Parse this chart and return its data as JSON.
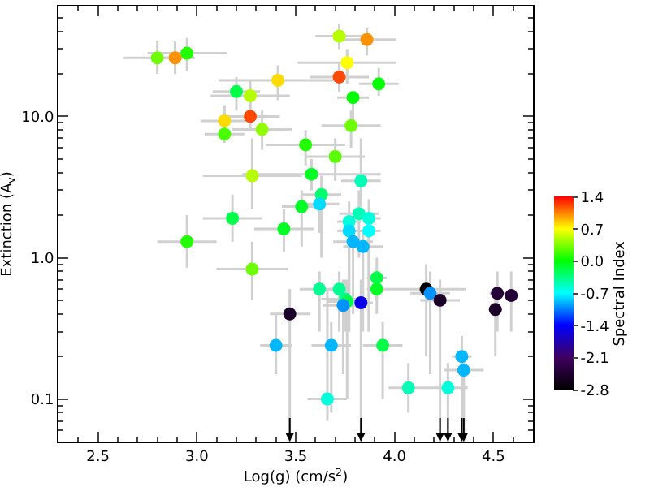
{
  "chart_data": {
    "type": "scatter",
    "xlabel": "Log(g) (cm/s$^{2}$)",
    "ylabel": "Extinction (A$_{v}$)",
    "clabel": "Spectral Index",
    "x": [
      2.8,
      2.89,
      2.95,
      3.2,
      3.27,
      3.14,
      3.27,
      3.14,
      3.33,
      3.28,
      3.18,
      2.95,
      3.28,
      3.4,
      3.72,
      3.86,
      3.76,
      3.41,
      3.72,
      3.92,
      3.79,
      3.78,
      3.55,
      3.7,
      3.58,
      3.83,
      3.63,
      3.62,
      3.53,
      3.44,
      3.82,
      3.77,
      3.87,
      3.77,
      3.87,
      3.79,
      3.84,
      3.91,
      3.91,
      3.62,
      3.72,
      3.75,
      3.76,
      3.74,
      3.83,
      4.16,
      4.18,
      4.23,
      3.47,
      4.52,
      4.59,
      4.51,
      3.68,
      3.94,
      4.34,
      4.35,
      4.07,
      4.27,
      3.66
    ],
    "values": [
      26,
      26,
      28,
      15,
      14,
      9.3,
      10,
      7.5,
      8.1,
      3.8,
      1.9,
      1.3,
      0.83,
      0.24,
      37,
      35,
      24,
      18,
      19,
      17,
      13.6,
      8.6,
      6.3,
      5.2,
      3.9,
      3.5,
      2.8,
      2.4,
      2.3,
      1.6,
      2.05,
      1.8,
      1.9,
      1.55,
      1.55,
      1.3,
      1.2,
      0.72,
      0.6,
      0.6,
      0.6,
      0.51,
      0.49,
      0.46,
      0.48,
      0.6,
      0.56,
      0.5,
      0.4,
      0.56,
      0.54,
      0.43,
      0.24,
      0.24,
      0.2,
      0.16,
      0.12,
      0.12,
      0.1
    ],
    "cvalues": [
      0.3,
      1.0,
      0.1,
      -0.2,
      0.5,
      0.8,
      1.2,
      0.2,
      0.4,
      0.5,
      -0.2,
      0.1,
      0.3,
      -0.9,
      0.5,
      1.0,
      0.7,
      0.8,
      1.2,
      0.0,
      0.0,
      0.3,
      0.1,
      0.25,
      -0.1,
      -0.5,
      -0.3,
      -0.8,
      -0.1,
      -0.1,
      -0.5,
      -0.6,
      -0.6,
      -0.8,
      -0.7,
      -0.9,
      -0.9,
      -0.2,
      -0.1,
      -0.4,
      -0.4,
      -0.4,
      -0.2,
      -1.0,
      -1.5,
      -2.8,
      -1.0,
      -2.5,
      -2.5,
      -2.4,
      -2.4,
      -2.5,
      -0.9,
      -0.2,
      -0.9,
      -0.9,
      -0.5,
      -0.6,
      -0.6
    ],
    "xerrors": [
      0.17,
      0.1,
      0.2,
      0.12,
      0.2,
      0.12,
      0.15,
      0.1,
      0.15,
      0.25,
      0.15,
      0.15,
      0.18,
      0.08,
      0.12,
      0.15,
      0.25,
      0.3,
      0.15,
      0.1,
      0.08,
      0.15,
      0.2,
      0.15,
      0.35,
      0.1,
      0.1,
      0.1,
      0.1,
      0.15,
      0.1,
      0.06,
      0.06,
      0.06,
      0.06,
      0.1,
      0.1,
      0.05,
      0.05,
      0.1,
      0.05,
      0.12,
      0.1,
      0.1,
      0.06,
      0.2,
      0.1,
      0.1,
      0.1,
      0.04,
      0.03,
      0.03,
      0.1,
      0.1,
      0.05,
      0.1,
      0.1,
      0.1,
      0.1
    ],
    "errors": [
      [
        20,
        34
      ],
      [
        20,
        34
      ],
      [
        21,
        36
      ],
      [
        11,
        19
      ],
      [
        10,
        18
      ],
      [
        7,
        12
      ],
      [
        8,
        13
      ],
      [
        6.5,
        8.5
      ],
      [
        5.8,
        11
      ],
      [
        2.2,
        7
      ],
      [
        1.3,
        2.8
      ],
      [
        0.85,
        2
      ],
      [
        0.5,
        1.3
      ],
      [
        0.15,
        0.4
      ],
      [
        30,
        45
      ],
      [
        27,
        42
      ],
      [
        17,
        30
      ],
      [
        13,
        23
      ],
      [
        15,
        24
      ],
      [
        14,
        22
      ],
      [
        8,
        15
      ],
      [
        6,
        11
      ],
      [
        4.5,
        8
      ],
      [
        3.5,
        7
      ],
      [
        3,
        5
      ],
      [
        2.3,
        7
      ],
      [
        1,
        3.8
      ],
      [
        1.5,
        3
      ],
      [
        1.2,
        3
      ],
      [
        1.1,
        2.2
      ],
      [
        1,
        3
      ],
      [
        0.3,
        2.5
      ],
      [
        0.3,
        2.6
      ],
      [
        0.3,
        2
      ],
      [
        0.3,
        2
      ],
      [
        0.4,
        1.8
      ],
      [
        0.3,
        1.6
      ],
      [
        0.5,
        1
      ],
      [
        0.4,
        0.8
      ],
      [
        0.3,
        0.8
      ],
      [
        0.3,
        0.8
      ],
      [
        0.3,
        0.7
      ],
      [
        0.1,
        0.7
      ],
      [
        0.15,
        0.7
      ],
      [
        0.05,
        0.7
      ],
      [
        0.2,
        0.9
      ],
      [
        0.15,
        0.8
      ],
      [
        0.05,
        0.7
      ],
      [
        0.05,
        0.6
      ],
      [
        0.3,
        0.8
      ],
      [
        0.3,
        0.8
      ],
      [
        0.2,
        0.6
      ],
      [
        0.08,
        0.35
      ],
      [
        0.1,
        0.35
      ],
      [
        0.05,
        0.28
      ],
      [
        0.05,
        0.22
      ],
      [
        0.08,
        0.18
      ],
      [
        0.05,
        0.18
      ],
      [
        0.07,
        0.6
      ]
    ],
    "xlim": [
      2.3,
      4.7
    ],
    "xticks": [
      2.5,
      {
        "value": 3,
        "label": "3.0"
      },
      3.5,
      {
        "value": 4,
        "label": "4.0"
      },
      4.5
    ],
    "ylim": [
      0.05,
      60
    ],
    "yticks": [
      0.1,
      {
        "value": 1,
        "label": "1.0"
      },
      {
        "value": 10,
        "label": "10.0"
      }
    ],
    "log": "y",
    "clim": [
      -2.8,
      1.4
    ],
    "cticks": [
      -2.8,
      -2.1,
      -1.4,
      -0.7,
      {
        "value": 0,
        "label": "0.0"
      },
      0.7,
      1.4
    ],
    "marker": "circle",
    "grid": false,
    "legend": false
  }
}
